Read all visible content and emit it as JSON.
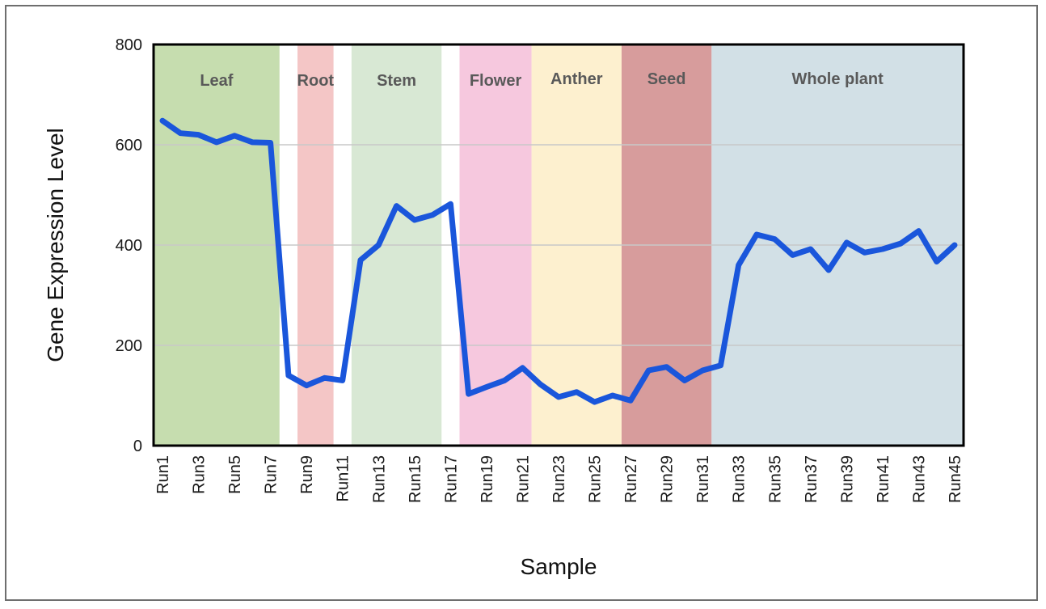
{
  "chart_data": {
    "type": "line",
    "xlabel": "Sample",
    "ylabel": "Gene Expression Level",
    "ylim": [
      0,
      800
    ],
    "yticks": [
      "0",
      "200",
      "400",
      "600",
      "800"
    ],
    "grid": "horizontal",
    "x": [
      "Run1",
      "Run2",
      "Run3",
      "Run4",
      "Run5",
      "Run6",
      "Run7",
      "Run8",
      "Run9",
      "Run10",
      "Run11",
      "Run12",
      "Run13",
      "Run14",
      "Run15",
      "Run16",
      "Run17",
      "Run18",
      "Run19",
      "Run20",
      "Run21",
      "Run22",
      "Run23",
      "Run24",
      "Run25",
      "Run26",
      "Run27",
      "Run28",
      "Run29",
      "Run30",
      "Run31",
      "Run32",
      "Run33",
      "Run34",
      "Run35",
      "Run36",
      "Run37",
      "Run38",
      "Run39",
      "Run40",
      "Run41",
      "Run42",
      "Run43",
      "Run44",
      "Run45"
    ],
    "xtick_labels": [
      "Run1",
      "Run3",
      "Run5",
      "Run7",
      "Run9",
      "Run11",
      "Run13",
      "Run15",
      "Run17",
      "Run19",
      "Run21",
      "Run23",
      "Run25",
      "Run27",
      "Run29",
      "Run31",
      "Run33",
      "Run35",
      "Run37",
      "Run39",
      "Run41",
      "Run43",
      "Run45"
    ],
    "values": [
      648,
      623,
      620,
      605,
      618,
      605,
      604,
      140,
      120,
      135,
      130,
      370,
      400,
      478,
      450,
      460,
      482,
      103,
      117,
      130,
      155,
      122,
      97,
      107,
      87,
      100,
      90,
      150,
      157,
      130,
      150,
      160,
      360,
      421,
      412,
      380,
      392,
      350,
      405,
      385,
      392,
      403,
      428,
      367,
      400
    ],
    "line_color": "#1a56db",
    "regions": [
      {
        "label": "Leaf",
        "start": 1,
        "end": 7,
        "color": "#c6ddaf"
      },
      {
        "label": "Root",
        "start": 8,
        "end": 10,
        "color": "#f4c6c6"
      },
      {
        "label": "Stem",
        "start": 11,
        "end": 16,
        "color": "#d8e8d4"
      },
      {
        "label": "Flower",
        "start": 17,
        "end": 21,
        "color": "#f6c8de"
      },
      {
        "label": "Anther",
        "start": 21,
        "end": 26,
        "color": "#fdf0cf"
      },
      {
        "label": "Seed",
        "start": 26,
        "end": 31,
        "color": "#d79c9c"
      },
      {
        "label": "Whole plant",
        "start": 31,
        "end": 45,
        "color": "#d2e0e6"
      }
    ]
  }
}
